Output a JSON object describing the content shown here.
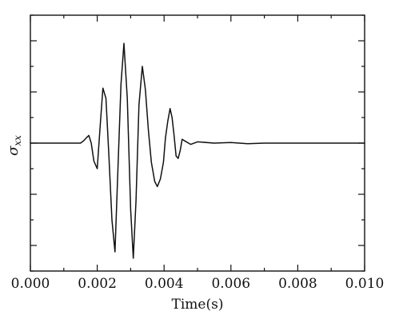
{
  "chart_data": {
    "type": "line",
    "title": "",
    "xlabel": "Time(s)",
    "ylabel": "σ",
    "ylabel_subscript": "xx",
    "xlim": [
      0.0,
      0.01
    ],
    "ylim": [
      -1.0,
      1.0
    ],
    "x_ticks": [
      0.0,
      0.002,
      0.004,
      0.006,
      0.008,
      0.01
    ],
    "x_tick_labels": [
      "0.000",
      "0.002",
      "0.004",
      "0.006",
      "0.008",
      "0.010"
    ],
    "y_tick_labels_shown": false,
    "grid": false,
    "legend": "none",
    "line_color": "#111111",
    "series": [
      {
        "x": [
          0.0,
          0.0015,
          0.0016,
          0.00167,
          0.00175,
          0.00182,
          0.0019,
          0.002,
          0.00208,
          0.00217,
          0.00226,
          0.00235,
          0.00244,
          0.00253,
          0.00262,
          0.00271,
          0.0028,
          0.0029,
          0.003,
          0.00308,
          0.00316,
          0.00325,
          0.00335,
          0.00344,
          0.00353,
          0.00362,
          0.00372,
          0.0038,
          0.00389,
          0.00398,
          0.00404,
          0.00411,
          0.00418,
          0.00424,
          0.0043,
          0.00436,
          0.00442,
          0.00448,
          0.00454,
          0.0046,
          0.0048,
          0.005,
          0.0055,
          0.006,
          0.0065,
          0.007,
          0.0075,
          0.008,
          0.009,
          0.01
        ],
        "y": [
          0.0,
          0.0,
          0.02,
          0.04,
          0.06,
          0.0,
          -0.14,
          -0.2,
          0.1,
          0.43,
          0.35,
          -0.1,
          -0.6,
          -0.85,
          -0.2,
          0.46,
          0.78,
          0.35,
          -0.52,
          -0.9,
          -0.45,
          0.3,
          0.6,
          0.42,
          0.1,
          -0.15,
          -0.3,
          -0.34,
          -0.28,
          -0.15,
          0.04,
          0.17,
          0.27,
          0.2,
          0.06,
          -0.1,
          -0.12,
          -0.06,
          0.03,
          0.02,
          -0.01,
          0.01,
          0.0,
          0.005,
          -0.005,
          0.0,
          0.0,
          0.0,
          0.0,
          0.0
        ]
      }
    ]
  }
}
